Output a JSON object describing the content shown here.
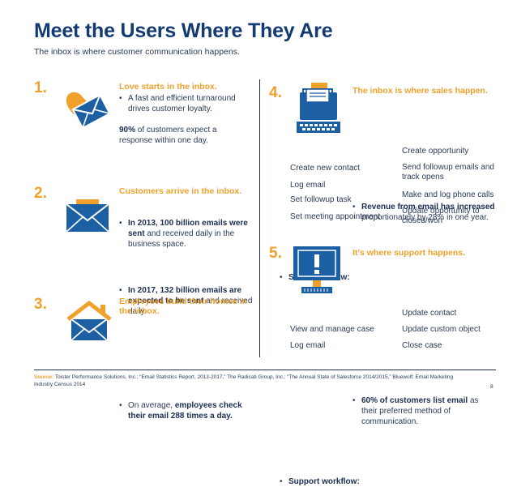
{
  "title": "Meet the Users Where They Are",
  "subtitle": "The inbox is where customer communication happens.",
  "colors": {
    "navy": "#143a73",
    "orange": "#f0a12b",
    "blue": "#1c5fa3"
  },
  "sections": {
    "s1": {
      "num": "1.",
      "heading": "Love starts in the inbox.",
      "bullet": "A fast and efficient turnaround drives customer loyalty.",
      "stat_bold": "90%",
      "stat_rest": " of customers expect a response within one day.",
      "icon": "envelope-heart-icon"
    },
    "s2": {
      "num": "2.",
      "heading": "Customers arrive in the inbox.",
      "b1_bold": "In 2013, 100 billion emails were sent",
      "b1_rest": " and received daily in the business space.",
      "b2_bold": "In 2017, 132 billion emails are expected to be sent",
      "b2_rest": " and received daily.",
      "icon": "envelope-card-icon"
    },
    "s3": {
      "num": "3.",
      "heading": "Employees build their homes in the inbox.",
      "b_pre": "On average, ",
      "b_bold": "employees check their email 288 times a day.",
      "icon": "house-envelope-icon"
    },
    "s4": {
      "num": "4.",
      "heading": "The inbox is where sales happen.",
      "b_bold": "Revenue from email has increased",
      "b_rest": " proportionately by 28% in one year.",
      "icon": "typewriter-icon",
      "workflow_label": "Sales workflow:",
      "col_left": [
        "Create new contact",
        "Log email",
        "Set followup task",
        "Set meeting appointment"
      ],
      "col_right": [
        "Create opportunity",
        "Send followup emails and track opens",
        "Make and log phone calls",
        "Update opportunity to closed/won"
      ]
    },
    "s5": {
      "num": "5.",
      "heading": "It’s where support happens.",
      "b_bold": "60% of customers list email",
      "b_rest": " as their preferred method of communication.",
      "icon": "monitor-alert-icon",
      "workflow_label": "Support workflow:",
      "col_left": [
        "View and manage case",
        "Log email"
      ],
      "col_right": [
        "Update contact",
        "Update custom object",
        "Close case"
      ]
    }
  },
  "footer": {
    "source_label": "Source:",
    "source_text": " Toister Performance Solutions, Inc.; “Email Statistics Report, 2013-2017,” The Radicati Group, Inc.; “The Annual State of Salesforce 2014/2015,” Bluewolf; Email Marketing Industry Census 2014",
    "page": "8"
  }
}
